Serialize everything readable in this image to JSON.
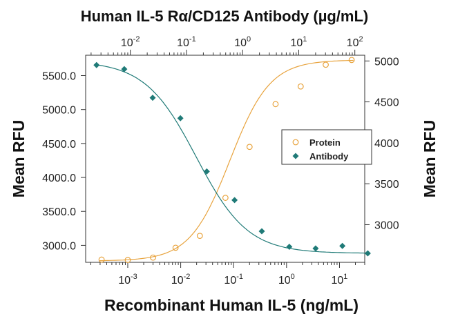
{
  "chart_data": {
    "type": "scatter",
    "title": "Human IL-5 Rα/CD125 Antibody (µg/mL)",
    "xlabel": "Recombinant Human IL-5 (ng/mL)",
    "ylabel_left": "Mean RFU",
    "ylabel_right": "Mean RFU",
    "x_bottom": {
      "scale": "log",
      "range": [
        0.00016,
        30
      ],
      "ticks": [
        {
          "base": "10",
          "exp": "-3",
          "value": 0.001
        },
        {
          "base": "10",
          "exp": "-2",
          "value": 0.01
        },
        {
          "base": "10",
          "exp": "-1",
          "value": 0.1
        },
        {
          "base": "10",
          "exp": "0",
          "value": 1
        },
        {
          "base": "10",
          "exp": "1",
          "value": 10
        }
      ]
    },
    "x_top": {
      "scale": "log",
      "range": [
        0.0016,
        150
      ],
      "ticks": [
        {
          "base": "10",
          "exp": "-2",
          "value": 0.01
        },
        {
          "base": "10",
          "exp": "-1",
          "value": 0.1
        },
        {
          "base": "10",
          "exp": "0",
          "value": 1
        },
        {
          "base": "10",
          "exp": "1",
          "value": 10
        },
        {
          "base": "10",
          "exp": "2",
          "value": 100
        }
      ]
    },
    "y_left": {
      "range": [
        2750,
        5800
      ],
      "ticks": [
        {
          "label": "3000.0",
          "value": 3000
        },
        {
          "label": "3500.0",
          "value": 3500
        },
        {
          "label": "4000.0",
          "value": 4000
        },
        {
          "label": "4500.0",
          "value": 4500
        },
        {
          "label": "5000.0",
          "value": 5000
        },
        {
          "label": "5500.0",
          "value": 5500
        }
      ]
    },
    "y_right": {
      "range": [
        2540,
        5070
      ],
      "ticks": [
        {
          "label": "3000",
          "value": 3000
        },
        {
          "label": "3500",
          "value": 3500
        },
        {
          "label": "4000",
          "value": 4000
        },
        {
          "label": "4500",
          "value": 4500
        },
        {
          "label": "5000",
          "value": 5000
        }
      ]
    },
    "legend": {
      "position": "right-middle",
      "entries": [
        "Protein",
        "Antibody"
      ]
    },
    "series": [
      {
        "name": "Protein",
        "axis": "bottom-left",
        "marker": "open-circle",
        "color": "#E8A33D",
        "fit": {
          "bottom": 2770,
          "top": 5730,
          "ec50": 0.085,
          "hill": 1.15
        },
        "points": [
          {
            "x": 0.00032,
            "y": 2790
          },
          {
            "x": 0.001,
            "y": 2785
          },
          {
            "x": 0.003,
            "y": 2820
          },
          {
            "x": 0.008,
            "y": 2965
          },
          {
            "x": 0.023,
            "y": 3140
          },
          {
            "x": 0.07,
            "y": 3700
          },
          {
            "x": 0.2,
            "y": 4450
          },
          {
            "x": 0.62,
            "y": 5080
          },
          {
            "x": 1.85,
            "y": 5340
          },
          {
            "x": 5.5,
            "y": 5660
          },
          {
            "x": 17,
            "y": 5730
          }
        ]
      },
      {
        "name": "Antibody",
        "axis": "top-right",
        "marker": "filled-diamond",
        "color": "#1F7A77",
        "fit": {
          "bottom": 2650,
          "top": 5000,
          "ec50": 0.15,
          "hill": 0.95
        },
        "points": [
          {
            "x": 0.0025,
            "y": 4950
          },
          {
            "x": 0.0078,
            "y": 4900
          },
          {
            "x": 0.025,
            "y": 4550
          },
          {
            "x": 0.078,
            "y": 4300
          },
          {
            "x": 0.23,
            "y": 3650
          },
          {
            "x": 0.72,
            "y": 3300
          },
          {
            "x": 2.2,
            "y": 2920
          },
          {
            "x": 6.8,
            "y": 2730
          },
          {
            "x": 20,
            "y": 2710
          },
          {
            "x": 60,
            "y": 2740
          },
          {
            "x": 170,
            "y": 2650
          }
        ]
      }
    ]
  }
}
